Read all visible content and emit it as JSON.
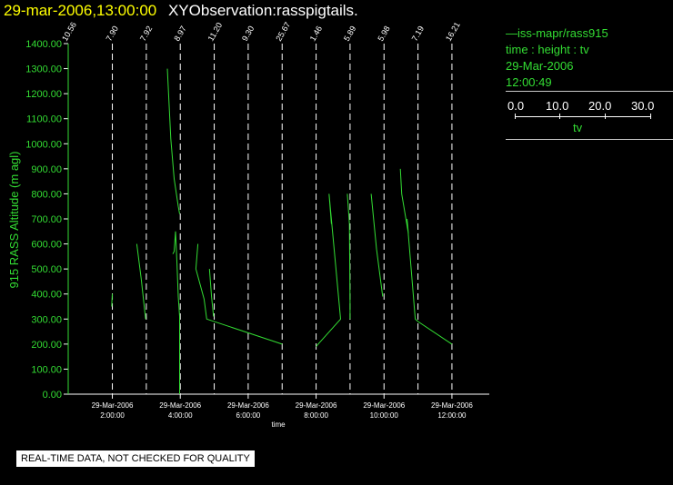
{
  "header": {
    "timestamp": "29-mar-2006,13:00:00",
    "title": "XYObservation:rasspigtails."
  },
  "legend": {
    "series_label": "iss-mapr/rass915",
    "vars": "time : height : tv",
    "date": "29-Mar-2006",
    "time": "12:00:49",
    "scale_ticks": [
      "0.0",
      "10.0",
      "20.0",
      "30.0"
    ],
    "scale_name": "tv"
  },
  "notice": "REAL-TIME DATA, NOT CHECKED FOR QUALITY",
  "colors": {
    "series": "#33dd33",
    "axis_labels": "#33dd33",
    "timestamp": "#ffff00",
    "vlines": "#ffffff"
  },
  "chart_data": {
    "type": "line",
    "ylabel": "915 RASS Altitude (m agl)",
    "xlabel": "time",
    "ylim": [
      0,
      1400
    ],
    "xlim": [
      0.7,
      13.1
    ],
    "yticks": [
      "0.00",
      "100.00",
      "200.00",
      "300.00",
      "400.00",
      "500.00",
      "600.00",
      "700.00",
      "800.00",
      "900.00",
      "1000.00",
      "1100.00",
      "1200.00",
      "1300.00",
      "1400.00"
    ],
    "xticks": [
      {
        "x": 2,
        "date": "29-Mar-2006",
        "time": "2:00:00"
      },
      {
        "x": 4,
        "date": "29-Mar-2006",
        "time": "4:00:00"
      },
      {
        "x": 6,
        "date": "29-Mar-2006",
        "time": "6:00:00"
      },
      {
        "x": 8,
        "date": "29-Mar-2006",
        "time": "8:00:00"
      },
      {
        "x": 10,
        "date": "29-Mar-2006",
        "time": "10:00:00"
      },
      {
        "x": 12,
        "date": "29-Mar-2006",
        "time": "12:00:00"
      }
    ],
    "vlines": [
      {
        "x": 0.7,
        "label": "10.56"
      },
      {
        "x": 2.0,
        "label": "7.90"
      },
      {
        "x": 3.0,
        "label": "7.92"
      },
      {
        "x": 4.0,
        "label": "8.97"
      },
      {
        "x": 5.0,
        "label": "11.20"
      },
      {
        "x": 6.0,
        "label": "9.30"
      },
      {
        "x": 7.0,
        "label": "25.67"
      },
      {
        "x": 8.0,
        "label": "1.46"
      },
      {
        "x": 9.0,
        "label": "5.89"
      },
      {
        "x": 10.0,
        "label": "5.98"
      },
      {
        "x": 11.0,
        "label": "7.19"
      },
      {
        "x": 12.0,
        "label": "16.21"
      }
    ],
    "profiles": [
      {
        "points": [
          [
            0.7,
            0
          ],
          [
            0.7,
            1400
          ]
        ]
      },
      {
        "points": [
          [
            2.0,
            400
          ],
          [
            1.98,
            350
          ]
        ]
      },
      {
        "points": [
          [
            2.72,
            600
          ],
          [
            2.85,
            460
          ],
          [
            2.98,
            300
          ]
        ]
      },
      {
        "points": [
          [
            3.62,
            1300
          ],
          [
            3.72,
            1020
          ],
          [
            3.82,
            860
          ],
          [
            3.94,
            750
          ],
          [
            3.98,
            720
          ]
        ]
      },
      {
        "points": [
          [
            3.78,
            560
          ],
          [
            3.82,
            570
          ],
          [
            3.86,
            650
          ],
          [
            3.9,
            530
          ],
          [
            3.94,
            390
          ],
          [
            3.98,
            310
          ],
          [
            3.98,
            0
          ]
        ]
      },
      {
        "points": [
          [
            4.52,
            600
          ],
          [
            4.46,
            500
          ],
          [
            4.7,
            380
          ],
          [
            4.78,
            300
          ],
          [
            7.0,
            200
          ]
        ]
      },
      {
        "points": [
          [
            4.86,
            500
          ],
          [
            4.92,
            390
          ],
          [
            4.98,
            310
          ]
        ]
      },
      {
        "points": [
          [
            8.0,
            190
          ],
          [
            8.06,
            200
          ],
          [
            8.72,
            300
          ],
          [
            8.38,
            800
          ],
          [
            8.45,
            680
          ]
        ]
      },
      {
        "points": [
          [
            8.92,
            800
          ],
          [
            8.98,
            680
          ],
          [
            9.0,
            370
          ],
          [
            9.0,
            300
          ]
        ]
      },
      {
        "points": [
          [
            9.62,
            800
          ],
          [
            9.78,
            580
          ],
          [
            9.96,
            390
          ]
        ]
      },
      {
        "points": [
          [
            10.48,
            900
          ],
          [
            10.52,
            800
          ],
          [
            10.72,
            640
          ],
          [
            10.68,
            700
          ],
          [
            10.92,
            300
          ],
          [
            11.0,
            290
          ],
          [
            12.0,
            200
          ]
        ]
      }
    ]
  }
}
